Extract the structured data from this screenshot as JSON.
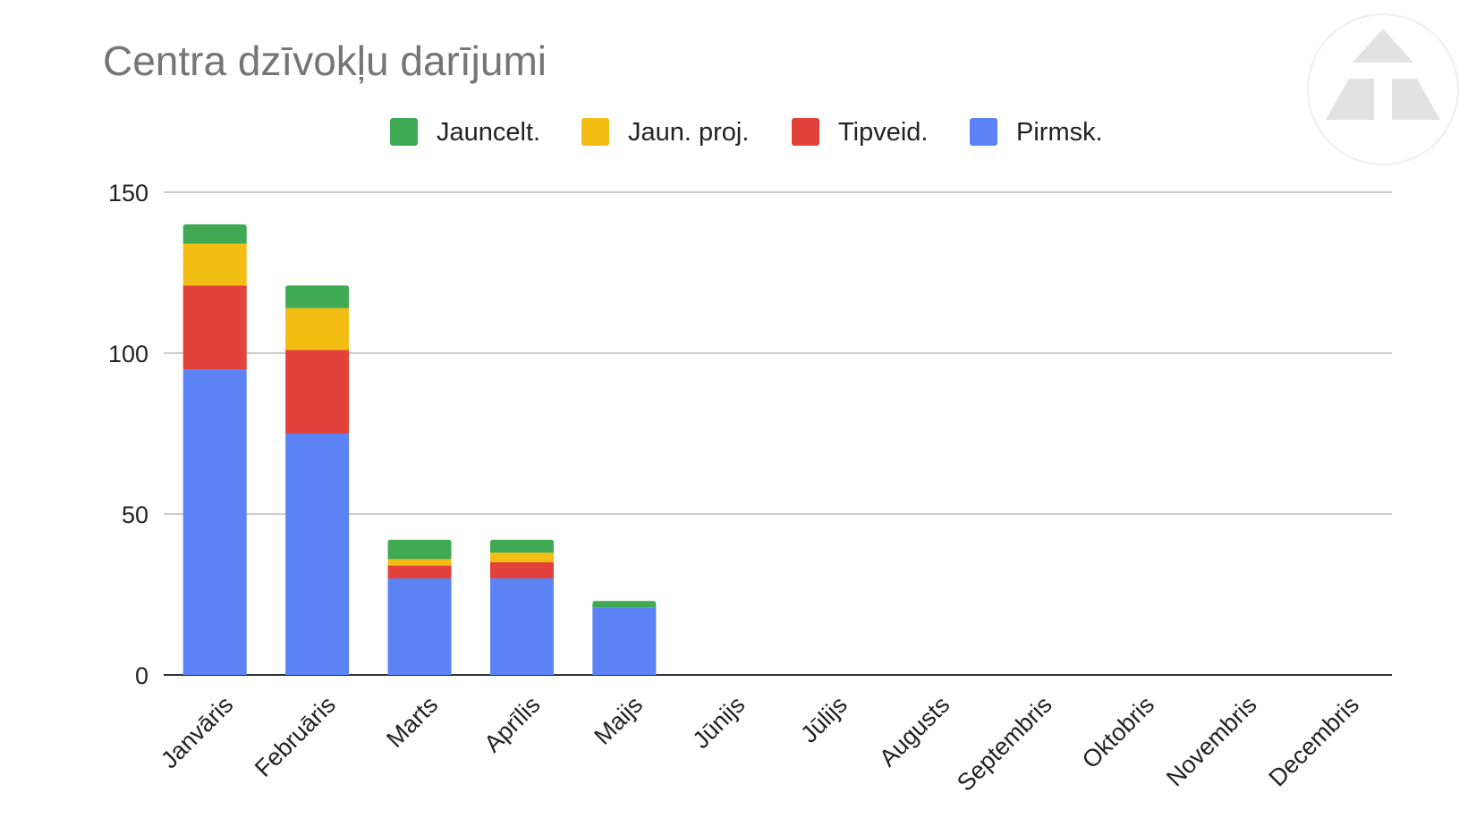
{
  "chart_data": {
    "type": "bar",
    "stacked": true,
    "title": "Centra dzīvokļu darījumi",
    "xlabel": "",
    "ylabel": "",
    "ylim": [
      0,
      150
    ],
    "yticks": [
      "0",
      "50",
      "100",
      "150"
    ],
    "grid": true,
    "legend_position": "top",
    "categories": [
      "Janvāris",
      "Februāris",
      "Marts",
      "Aprīlis",
      "Maijs",
      "Jūnijs",
      "Jūlijs",
      "Augusts",
      "Septembris",
      "Oktobris",
      "Novembris",
      "Decembris"
    ],
    "series": [
      {
        "name": "Pirmsk.",
        "color": "#5b83f5",
        "values": [
          95,
          75,
          30,
          30,
          21,
          0,
          0,
          0,
          0,
          0,
          0,
          0
        ]
      },
      {
        "name": "Tipveid.",
        "color": "#e3423a",
        "values": [
          26,
          26,
          4,
          5,
          0,
          0,
          0,
          0,
          0,
          0,
          0,
          0
        ]
      },
      {
        "name": "Jaun. proj.",
        "color": "#f4bd14",
        "values": [
          13,
          13,
          2,
          3,
          0,
          0,
          0,
          0,
          0,
          0,
          0,
          0
        ]
      },
      {
        "name": "Jauncelt.",
        "color": "#3fa953",
        "values": [
          6,
          7,
          6,
          4,
          2,
          0,
          0,
          0,
          0,
          0,
          0,
          0
        ]
      }
    ],
    "legend_order": [
      "Jauncelt.",
      "Jaun. proj.",
      "Tipveid.",
      "Pirmsk."
    ]
  }
}
